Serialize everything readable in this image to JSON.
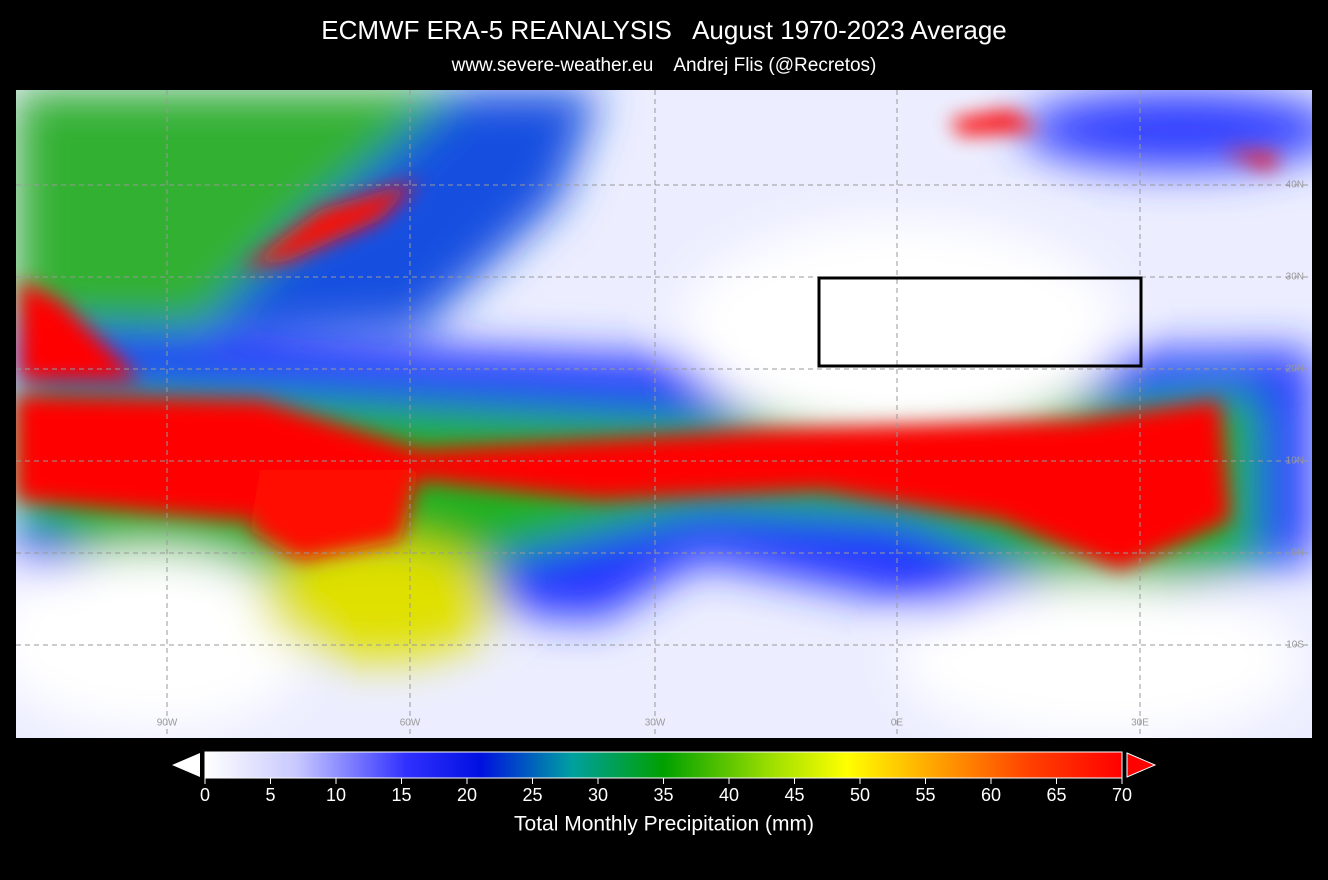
{
  "header": {
    "title": "ECMWF ERA-5 REANALYSIS   August 1970-2023 Average",
    "subtitle": "www.severe-weather.eu    Andrej Flis (@Recretos)"
  },
  "map": {
    "lon_labels": [
      "90W",
      "60W",
      "30W",
      "0E",
      "30E"
    ],
    "lat_labels": [
      "40N",
      "30N",
      "20N",
      "10N",
      "0N",
      "10S"
    ]
  },
  "colorbar": {
    "range": [
      0,
      70
    ],
    "ticks": [
      0,
      5,
      10,
      15,
      20,
      25,
      30,
      35,
      40,
      45,
      50,
      55,
      60,
      65,
      70
    ],
    "label": "Total Monthly Precipitation (mm)"
  }
}
